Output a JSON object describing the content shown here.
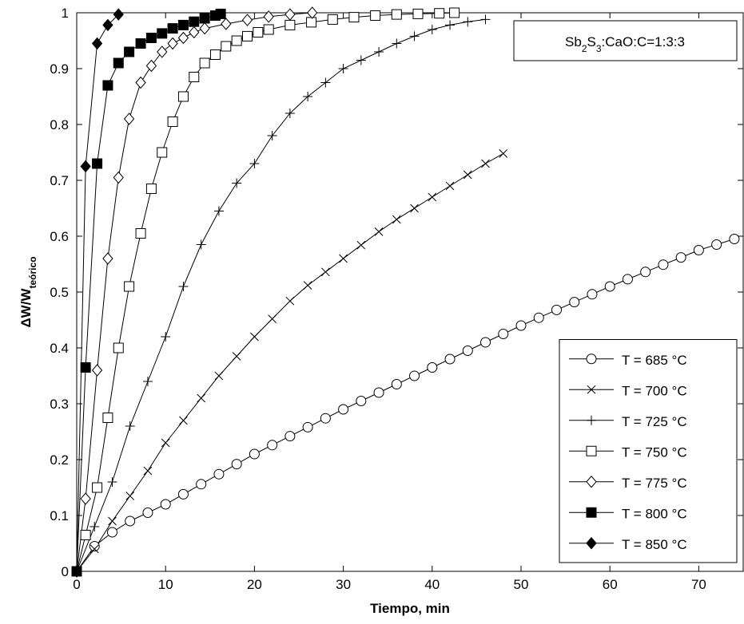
{
  "chart_data": {
    "type": "line",
    "xlabel": "Tiempo, min",
    "ylabel": [
      {
        "text": "ΔW/W"
      },
      {
        "text": "teórico",
        "sub": true
      }
    ],
    "annotation": [
      {
        "text": "Sb"
      },
      {
        "text": "2",
        "sub": true
      },
      {
        "text": "S"
      },
      {
        "text": "3",
        "sub": true
      },
      {
        "text": ":CaO:C=1:3:3"
      }
    ],
    "xlim": [
      0,
      75
    ],
    "ylim": [
      0,
      1
    ],
    "xticks": [
      0,
      10,
      20,
      30,
      40,
      50,
      60,
      70
    ],
    "yticks": [
      0,
      0.1,
      0.2,
      0.3,
      0.4,
      0.5,
      0.6,
      0.7,
      0.8,
      0.9,
      1
    ],
    "grid": false,
    "legend": "lower right",
    "series": [
      {
        "name": "T = 685 °C",
        "color": "#000000",
        "marker": "circle",
        "filled": false,
        "x": [
          0,
          2,
          4,
          6,
          8,
          10,
          12,
          14,
          16,
          18,
          20,
          22,
          24,
          26,
          28,
          30,
          32,
          34,
          36,
          38,
          40,
          42,
          44,
          46,
          48,
          50,
          52,
          54,
          56,
          58,
          60,
          62,
          64,
          66,
          68,
          70,
          72,
          74
        ],
        "values": [
          0,
          0.045,
          0.07,
          0.09,
          0.105,
          0.12,
          0.138,
          0.156,
          0.174,
          0.192,
          0.21,
          0.226,
          0.242,
          0.258,
          0.274,
          0.29,
          0.305,
          0.32,
          0.335,
          0.35,
          0.365,
          0.38,
          0.395,
          0.41,
          0.425,
          0.44,
          0.454,
          0.468,
          0.482,
          0.496,
          0.51,
          0.523,
          0.536,
          0.549,
          0.562,
          0.575,
          0.585,
          0.595
        ]
      },
      {
        "name": "T = 700 °C",
        "color": "#000000",
        "marker": "x",
        "filled": false,
        "x": [
          0,
          2,
          4,
          6,
          8,
          10,
          12,
          14,
          16,
          18,
          20,
          22,
          24,
          26,
          28,
          30,
          32,
          34,
          36,
          38,
          40,
          42,
          44,
          46,
          48
        ],
        "values": [
          0,
          0.04,
          0.09,
          0.135,
          0.18,
          0.23,
          0.27,
          0.31,
          0.35,
          0.385,
          0.42,
          0.452,
          0.484,
          0.512,
          0.536,
          0.56,
          0.584,
          0.608,
          0.63,
          0.65,
          0.67,
          0.69,
          0.71,
          0.73,
          0.748
        ]
      },
      {
        "name": "T = 725 °C",
        "color": "#000000",
        "marker": "plus",
        "filled": false,
        "x": [
          0,
          2,
          4,
          6,
          8,
          10,
          12,
          14,
          16,
          18,
          20,
          22,
          24,
          26,
          28,
          30,
          32,
          34,
          36,
          38,
          40,
          42,
          44,
          46
        ],
        "values": [
          0,
          0.08,
          0.16,
          0.26,
          0.34,
          0.42,
          0.51,
          0.585,
          0.645,
          0.695,
          0.73,
          0.78,
          0.82,
          0.85,
          0.875,
          0.9,
          0.915,
          0.93,
          0.945,
          0.958,
          0.97,
          0.978,
          0.984,
          0.988
        ]
      },
      {
        "name": "T = 750 °C",
        "color": "#000000",
        "marker": "square",
        "filled": false,
        "x": [
          0,
          1,
          2.3,
          3.5,
          4.7,
          5.9,
          7.2,
          8.4,
          9.6,
          10.8,
          12,
          13.2,
          14.4,
          15.6,
          16.8,
          18,
          19.2,
          20.4,
          21.6,
          24,
          26.4,
          28.8,
          31.2,
          33.6,
          36,
          38.4,
          40.8,
          42.5
        ],
        "values": [
          0,
          0.065,
          0.15,
          0.275,
          0.4,
          0.51,
          0.605,
          0.685,
          0.75,
          0.805,
          0.85,
          0.885,
          0.91,
          0.925,
          0.94,
          0.95,
          0.958,
          0.965,
          0.97,
          0.978,
          0.983,
          0.988,
          0.992,
          0.995,
          0.997,
          0.998,
          0.999,
          1
        ]
      },
      {
        "name": "T = 775 °C",
        "color": "#000000",
        "marker": "diamond",
        "filled": false,
        "x": [
          0,
          1,
          2.3,
          3.5,
          4.7,
          5.9,
          7.2,
          8.4,
          9.6,
          10.8,
          12,
          13.2,
          14.4,
          16.8,
          19.2,
          21.6,
          24,
          26.5
        ],
        "values": [
          0,
          0.13,
          0.36,
          0.56,
          0.705,
          0.81,
          0.875,
          0.905,
          0.93,
          0.945,
          0.955,
          0.965,
          0.972,
          0.98,
          0.987,
          0.993,
          0.997,
          1
        ]
      },
      {
        "name": "T = 800 °C",
        "color": "#000000",
        "marker": "square",
        "filled": true,
        "x": [
          0,
          1,
          2.3,
          3.5,
          4.7,
          5.9,
          7.2,
          8.4,
          9.6,
          10.8,
          12,
          13.2,
          14.4,
          15.6,
          16.2
        ],
        "values": [
          0,
          0.365,
          0.73,
          0.87,
          0.91,
          0.93,
          0.945,
          0.955,
          0.963,
          0.972,
          0.978,
          0.984,
          0.99,
          0.995,
          0.998
        ]
      },
      {
        "name": "T = 850 °C",
        "color": "#000000",
        "marker": "diamond",
        "filled": true,
        "x": [
          0,
          1,
          2.3,
          3.5,
          4.7
        ],
        "values": [
          0,
          0.725,
          0.945,
          0.978,
          0.997
        ]
      }
    ]
  }
}
